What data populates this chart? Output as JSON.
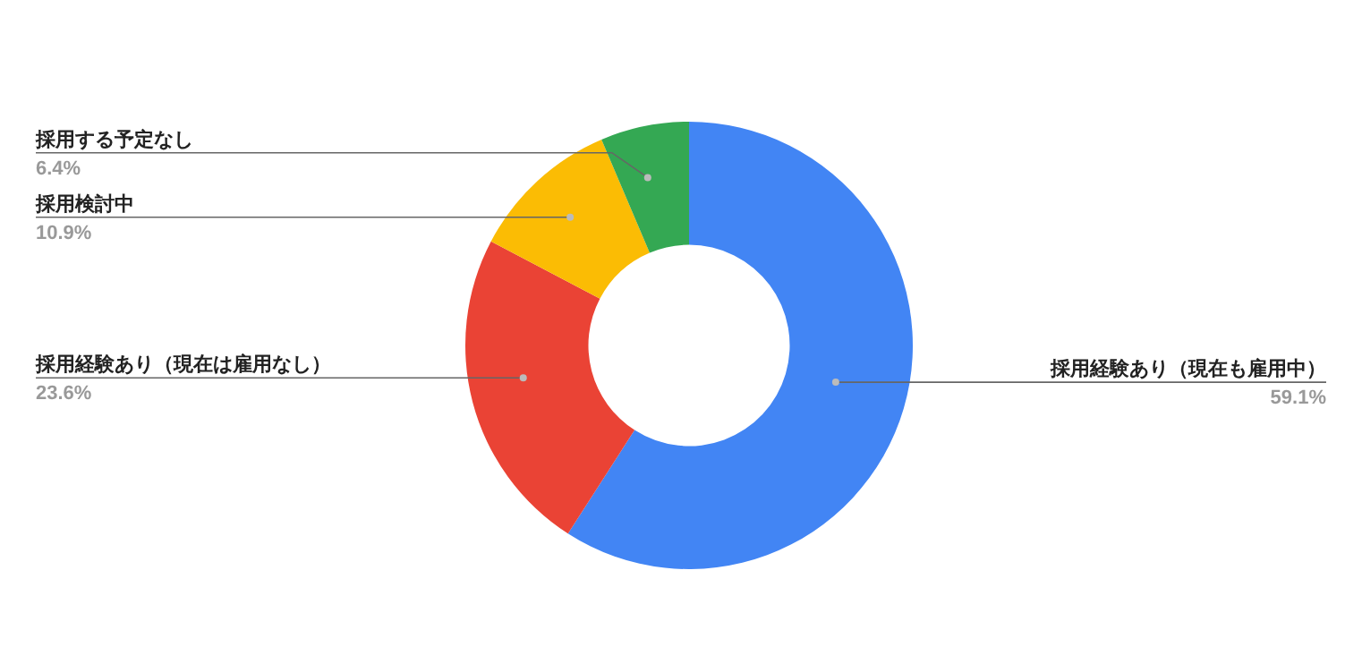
{
  "chart_data": {
    "type": "donut",
    "categories": [
      "採用経験あり（現在も雇用中）",
      "採用経験あり（現在は雇用なし）",
      "採用検討中",
      "採用する予定なし"
    ],
    "values": [
      59.1,
      23.6,
      10.9,
      6.4
    ],
    "value_labels": [
      "59.1%",
      "23.6%",
      "10.9%",
      "6.4%"
    ],
    "colors": [
      "#4285f4",
      "#ea4335",
      "#fbbc04",
      "#34a853"
    ]
  }
}
